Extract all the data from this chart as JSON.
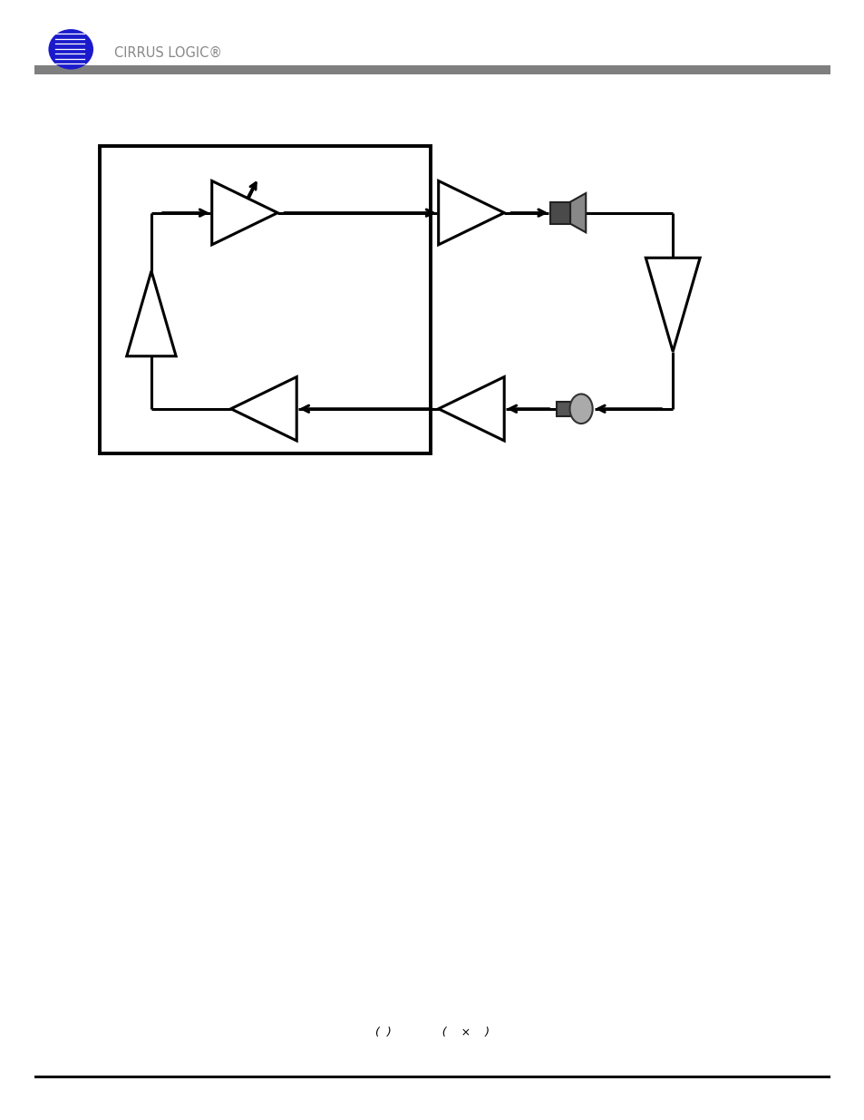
{
  "bg_color": "#ffffff",
  "line_color": "#000000",
  "lw": 2.2,
  "fig_w": 9.54,
  "fig_h": 12.35,
  "header_color": "#7f7f7f",
  "dark_gray": "#555555",
  "mid_gray": "#888888",
  "amp_size": 0.038,
  "formula_text": "(  )              (    ×    )"
}
